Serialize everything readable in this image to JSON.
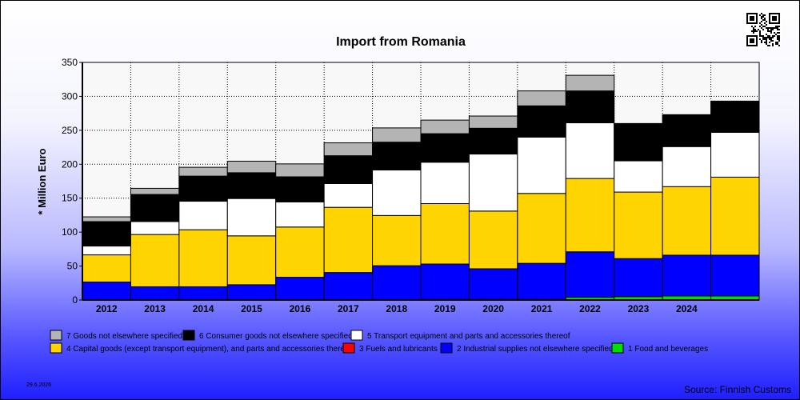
{
  "chart_data": {
    "type": "bar",
    "stacked": true,
    "title": "Import from Romania",
    "ylabel": "* Million Euro",
    "xlabel": "",
    "ylim": [
      0,
      350
    ],
    "yticks": [
      0,
      50,
      100,
      150,
      200,
      250,
      300,
      350
    ],
    "grid": true,
    "legend_position": "bottom",
    "categories": [
      "2012",
      "2013",
      "2014",
      "2015",
      "2016",
      "2017",
      "2018",
      "2019",
      "2020",
      "2021",
      "2022",
      "2023",
      "2024",
      ""
    ],
    "series": [
      {
        "name": "1 Food and beverages",
        "color": "#00dd00",
        "values": [
          0.5,
          0.5,
          0.5,
          0.5,
          0.5,
          0.5,
          0.5,
          1,
          1,
          1,
          4,
          5,
          6,
          6
        ]
      },
      {
        "name": "2 Industrial supplies not elsewhere specified",
        "color": "#0000ff",
        "values": [
          26,
          19,
          19,
          22,
          33,
          40,
          50,
          52,
          45,
          53,
          67,
          56,
          60,
          60
        ]
      },
      {
        "name": "3 Fuels and lubricants",
        "color": "#ff0000",
        "values": [
          0,
          0,
          0,
          0,
          0,
          0,
          0,
          0,
          0,
          0,
          0,
          0,
          0,
          0
        ]
      },
      {
        "name": "4 Capital goods (except transport equipment), and parts and accessories thereof",
        "color": "#ffd400",
        "values": [
          40,
          77,
          84,
          72,
          74,
          96,
          74,
          89,
          85,
          103,
          108,
          98,
          101,
          115
        ]
      },
      {
        "name": "5  Transport equipment and parts and accessories thereof",
        "color": "#ffffff",
        "values": [
          13,
          19,
          42,
          55,
          37,
          35,
          67,
          61,
          84,
          83,
          82,
          46,
          59,
          66
        ]
      },
      {
        "name": "6 Consumer goods not elsewhere specified",
        "color": "#000000",
        "values": [
          36,
          40,
          37,
          38,
          37,
          41,
          41,
          42,
          38,
          46,
          47,
          55,
          47,
          46
        ]
      },
      {
        "name": "7 Goods not elsewhere specified",
        "color": "#b4b4b4",
        "values": [
          7,
          9,
          13,
          17,
          19,
          19,
          21,
          20,
          18,
          22,
          23,
          0,
          0,
          0
        ]
      }
    ],
    "legend_order": [
      6,
      5,
      4,
      3,
      2,
      1,
      0
    ]
  },
  "footer": {
    "date": "29.6.2026",
    "source": "Source: Finnish Customs"
  },
  "qr_icon": "qr-code-icon"
}
